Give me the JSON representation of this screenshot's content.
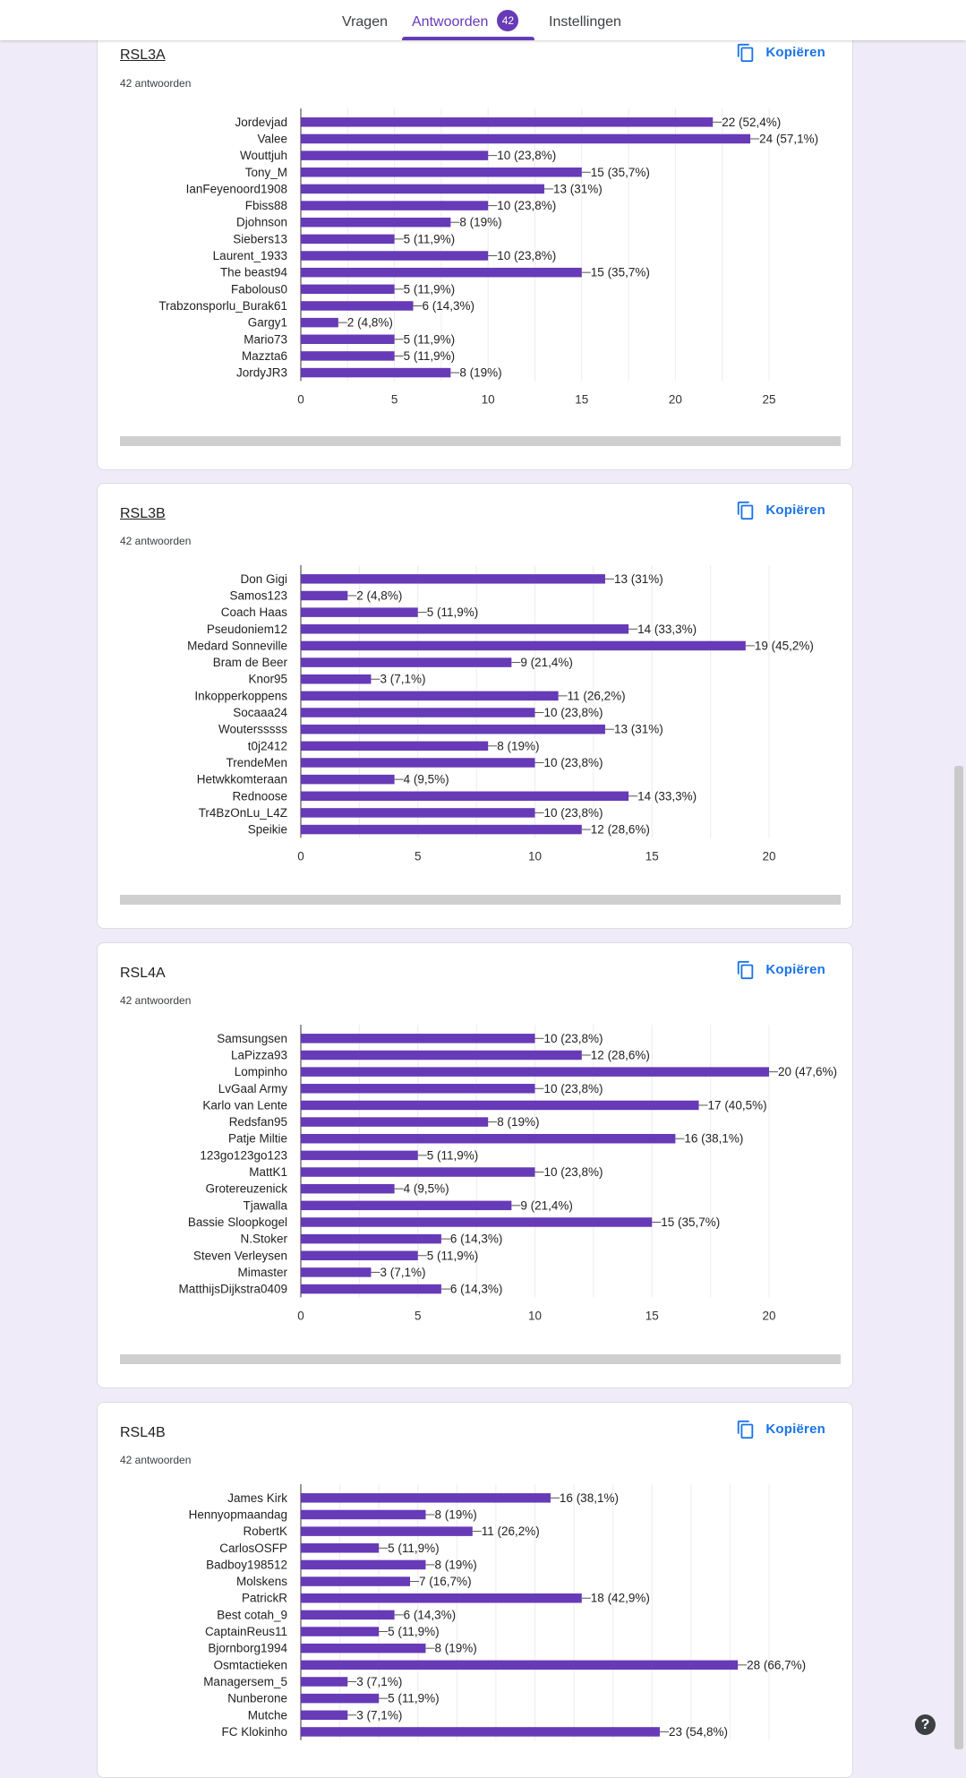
{
  "tabs": [
    {
      "label": "Vragen"
    },
    {
      "label": "Antwoorden",
      "badge": "42"
    },
    {
      "label": "Instellingen"
    }
  ],
  "accent_color": "#673ab7",
  "copy_label": "Kopiëren",
  "help_label": "?",
  "questions": [
    {
      "title": "RSL3A",
      "count_label": "42 antwoorden",
      "chart_data": {
        "type": "bar",
        "orientation": "horizontal",
        "categories": [
          "Jordevjad",
          "Valee",
          "Wouttjuh",
          "Tony_M",
          "IanFeyenoord1908",
          "Fbiss88",
          "Djohnson",
          "Siebers13",
          "Laurent_1933",
          "The beast94",
          "Fabolous0",
          "Trabzonsporlu_Burak61",
          "Gargy1",
          "Mario73",
          "Mazzta6",
          "JordyJR3"
        ],
        "values": [
          22,
          24,
          10,
          15,
          13,
          10,
          8,
          5,
          10,
          15,
          5,
          6,
          2,
          5,
          5,
          8
        ],
        "data_labels": [
          "22 (52,4%)",
          "24 (57,1%)",
          "10 (23,8%)",
          "15 (35,7%)",
          "13 (31%)",
          "10 (23,8%)",
          "8 (19%)",
          "5 (11,9%)",
          "10 (23,8%)",
          "15 (35,7%)",
          "5 (11,9%)",
          "6 (14,3%)",
          "2 (4,8%)",
          "5 (11,9%)",
          "5 (11,9%)",
          "8 (19%)"
        ],
        "xlim": [
          0,
          25
        ],
        "xticks": [
          0,
          5,
          10,
          15,
          20,
          25
        ],
        "grid": true,
        "bar_color": "#673ab7"
      }
    },
    {
      "title": "RSL3B",
      "count_label": "42 antwoorden",
      "chart_data": {
        "type": "bar",
        "orientation": "horizontal",
        "categories": [
          "Don Gigi",
          "Samos123",
          "Coach Haas",
          "Pseudoniem12",
          "Medard Sonneville",
          "Bram de Beer",
          "Knor95",
          "Inkopperkoppens",
          "Socaaa24",
          "Woutersssss",
          "t0j2412",
          "TrendeMen",
          "Hetwkkomteraan",
          "Rednoose",
          "Tr4BzOnLu_L4Z",
          "Speikie"
        ],
        "values": [
          13,
          2,
          5,
          14,
          19,
          9,
          3,
          11,
          10,
          13,
          8,
          10,
          4,
          14,
          10,
          12
        ],
        "data_labels": [
          "13 (31%)",
          "2 (4,8%)",
          "5 (11,9%)",
          "14 (33,3%)",
          "19 (45,2%)",
          "9 (21,4%)",
          "3 (7,1%)",
          "11 (26,2%)",
          "10 (23,8%)",
          "13 (31%)",
          "8 (19%)",
          "10 (23,8%)",
          "4 (9,5%)",
          "14 (33,3%)",
          "10 (23,8%)",
          "12 (28,6%)"
        ],
        "xlim": [
          0,
          20
        ],
        "xticks": [
          0,
          5,
          10,
          15,
          20
        ],
        "grid": true,
        "bar_color": "#673ab7"
      }
    },
    {
      "title": "RSL4A",
      "count_label": "42 antwoorden",
      "chart_data": {
        "type": "bar",
        "orientation": "horizontal",
        "categories": [
          "Samsungsen",
          "LaPizza93",
          "Lompinho",
          "LvGaal Army",
          "Karlo van Lente",
          "Redsfan95",
          "Patje Miltie",
          "123go123go123",
          "MattK1",
          "Grotereuzenick",
          "Tjawalla",
          "Bassie Sloopkogel",
          "N.Stoker",
          "Steven Verleysen",
          "Mimaster",
          "MatthijsDijkstra0409"
        ],
        "values": [
          10,
          12,
          20,
          10,
          17,
          8,
          16,
          5,
          10,
          4,
          9,
          15,
          6,
          5,
          3,
          6
        ],
        "data_labels": [
          "10 (23,8%)",
          "12 (28,6%)",
          "20 (47,6%)",
          "10 (23,8%)",
          "17 (40,5%)",
          "8 (19%)",
          "16 (38,1%)",
          "5 (11,9%)",
          "10 (23,8%)",
          "4 (9,5%)",
          "9 (21,4%)",
          "15 (35,7%)",
          "6 (14,3%)",
          "5 (11,9%)",
          "3 (7,1%)",
          "6 (14,3%)"
        ],
        "xlim": [
          0,
          20
        ],
        "xticks": [
          0,
          5,
          10,
          15,
          20
        ],
        "grid": true,
        "bar_color": "#673ab7"
      }
    },
    {
      "title": "RSL4B",
      "count_label": "42 antwoorden",
      "chart_data": {
        "type": "bar",
        "orientation": "horizontal",
        "categories": [
          "James Kirk",
          "Hennyopmaandag",
          "RobertK",
          "CarlosOSFP",
          "Badboy198512",
          "Molskens",
          "PatrickR",
          "Best cotah_9",
          "CaptainReus11",
          "Bjornborg1994",
          "Osmtactieken",
          "Managersem_5",
          "Nunberone",
          "Mutche",
          "FC Klokinho"
        ],
        "values": [
          16,
          8,
          11,
          5,
          8,
          7,
          18,
          6,
          5,
          8,
          28,
          3,
          5,
          3,
          23
        ],
        "data_labels": [
          "16 (38,1%)",
          "8 (19%)",
          "11 (26,2%)",
          "5 (11,9%)",
          "8 (19%)",
          "7 (16,7%)",
          "18 (42,9%)",
          "6 (14,3%)",
          "5 (11,9%)",
          "8 (19%)",
          "28 (66,7%)",
          "3 (7,1%)",
          "5 (11,9%)",
          "3 (7,1%)",
          "23 (54,8%)"
        ],
        "xlim": [
          0,
          30
        ],
        "grid": true,
        "bar_color": "#673ab7"
      }
    }
  ]
}
